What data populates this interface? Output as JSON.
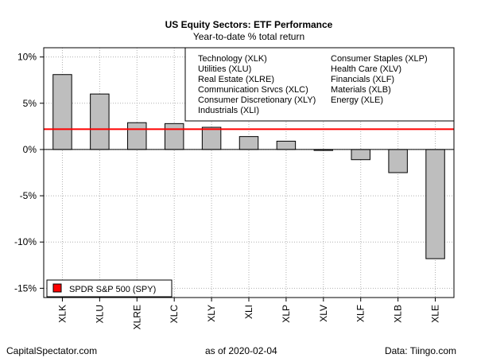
{
  "chart_data": {
    "type": "bar",
    "title": "US Equity Sectors: ETF Performance",
    "subtitle": "Year-to-date % total return",
    "categories": [
      "XLK",
      "XLU",
      "XLRE",
      "XLC",
      "XLY",
      "XLI",
      "XLP",
      "XLV",
      "XLF",
      "XLB",
      "XLE"
    ],
    "values": [
      8.1,
      6.0,
      2.9,
      2.8,
      2.4,
      1.4,
      0.9,
      -0.1,
      -1.1,
      -2.5,
      -11.8
    ],
    "bar_color": "#bebebe",
    "ylim": [
      -16,
      11
    ],
    "yticks": [
      10,
      5,
      0,
      -5,
      -10,
      -15
    ],
    "ytick_labels": [
      "10%",
      "5%",
      "0%",
      "-5%",
      "-10%",
      "-15%"
    ],
    "grid": true,
    "reference_line": {
      "label": "SPDR S&P 500 (SPY)",
      "value": 2.2,
      "color": "#ff0000"
    },
    "legend": {
      "placement": "top-right",
      "columns": [
        [
          "Technology (XLK)",
          "Utilities (XLU)",
          "Real Estate (XLRE)",
          "Communication Srvcs (XLC)",
          "Consumer Discretionary (XLY)",
          "Industrials (XLI)"
        ],
        [
          "Consumer Staples (XLP)",
          "Health Care (XLV)",
          "Financials (XLF)",
          "Materials (XLB)",
          "Energy (XLE)"
        ]
      ]
    },
    "reference_legend_placement": "bottom-left"
  },
  "footer": {
    "left": "CapitalSpectator.com",
    "center": "as of  2020-02-04",
    "right": "Data: Tiingo.com"
  }
}
